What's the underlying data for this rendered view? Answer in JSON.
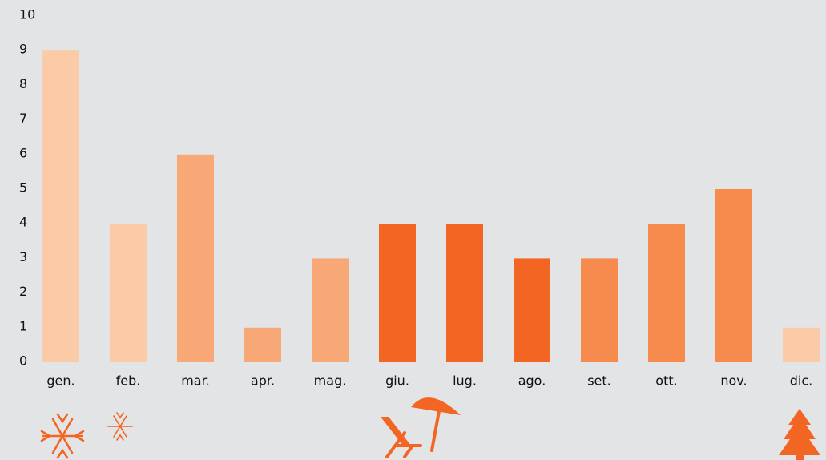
{
  "chart_data": {
    "type": "bar",
    "categories": [
      "gen.",
      "feb.",
      "mar.",
      "apr.",
      "mag.",
      "giu.",
      "lug.",
      "ago.",
      "set.",
      "ott.",
      "nov.",
      "dic."
    ],
    "values": [
      9,
      4,
      6,
      1,
      3,
      4,
      4,
      3,
      3,
      4,
      5,
      1
    ],
    "colors": [
      "#fbcaa7",
      "#fbcaa7",
      "#f8a877",
      "#f8a877",
      "#f8a877",
      "#f26522",
      "#f26522",
      "#f26522",
      "#f68b4d",
      "#f68b4d",
      "#f68b4d",
      "#fbcaa7"
    ],
    "ylim": [
      0,
      10
    ],
    "yticks": [
      0,
      1,
      2,
      3,
      4,
      5,
      6,
      7,
      8,
      9,
      10
    ],
    "grid": false
  }
}
